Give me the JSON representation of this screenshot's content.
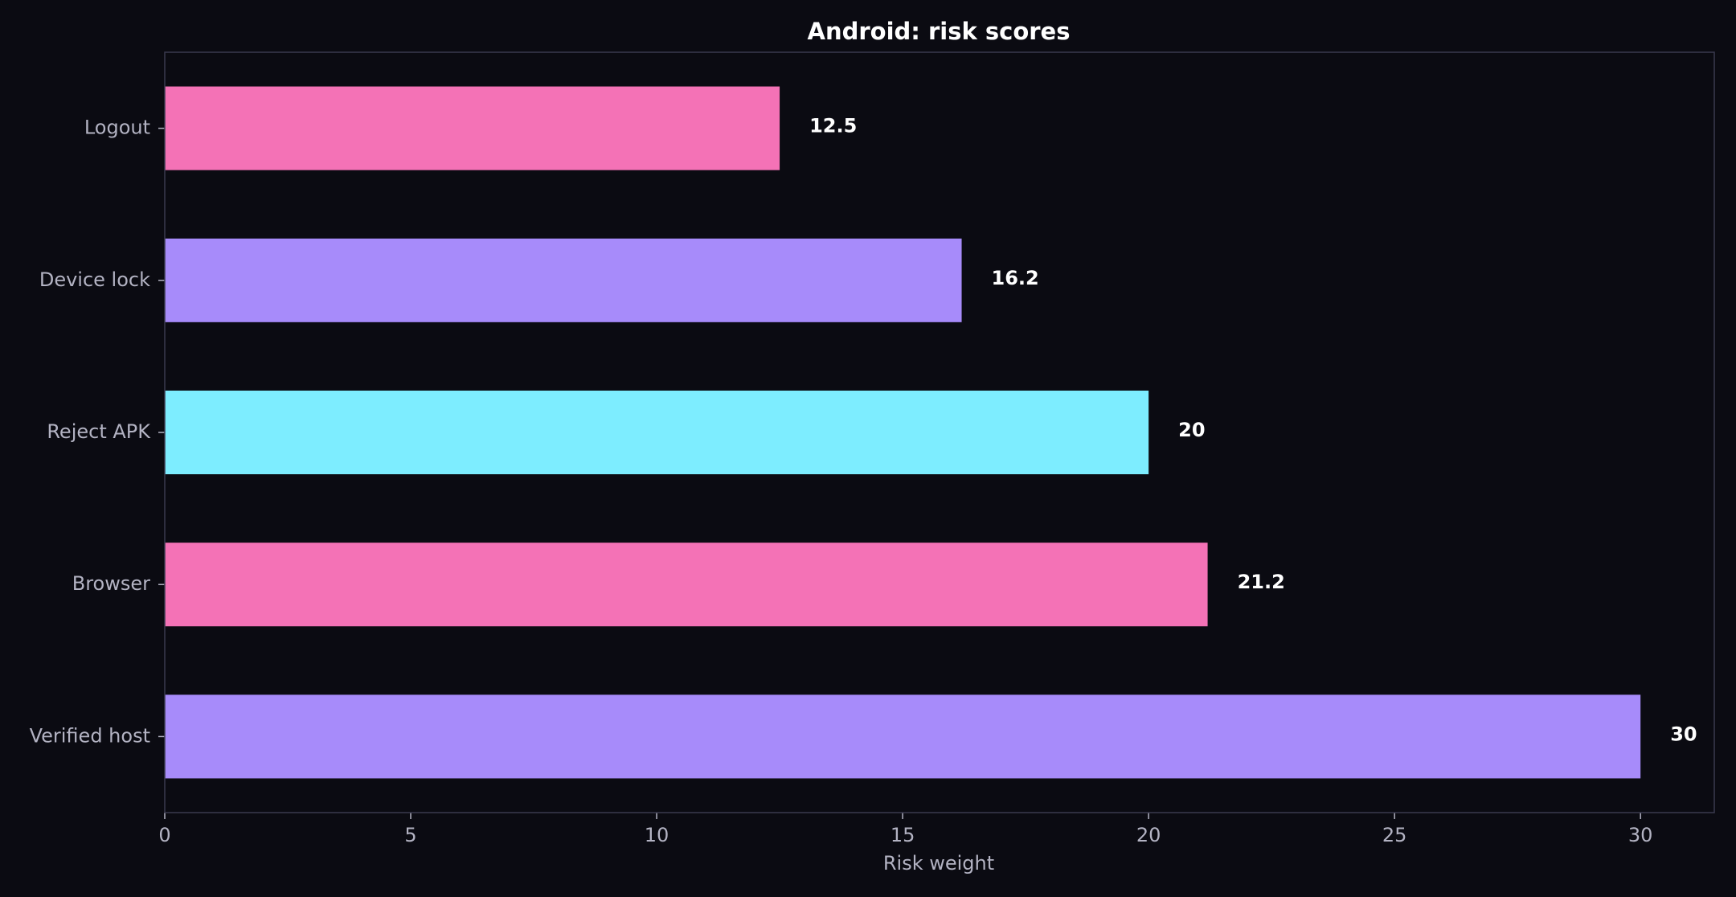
{
  "chart_data": {
    "type": "bar",
    "orientation": "horizontal",
    "title": "Android: risk scores",
    "xlabel": "Risk weight",
    "ylabel": "",
    "xlim": [
      0,
      31.5
    ],
    "x_ticks": [
      0,
      5,
      10,
      15,
      20,
      25,
      30
    ],
    "x_tick_labels": [
      "0",
      "5",
      "10",
      "15",
      "20",
      "25",
      "30"
    ],
    "categories": [
      "Logout",
      "Device lock",
      "Reject APK",
      "Browser",
      "Verified host"
    ],
    "values": [
      12.5,
      16.2,
      20,
      21.2,
      30
    ],
    "value_labels": [
      "12.5",
      "16.2",
      "20",
      "21.2",
      "30"
    ],
    "bar_colors": [
      "#f472b6",
      "#a78bfa",
      "#7dedff",
      "#f472b6",
      "#a78bfa"
    ],
    "grid": false,
    "legend": "none"
  },
  "colors": {
    "background": "#0b0b12",
    "axes_frame": "#3a3a4e",
    "tick_label": "#b3b3c3",
    "title": "#ffffff",
    "data_label": "#ffffff"
  }
}
